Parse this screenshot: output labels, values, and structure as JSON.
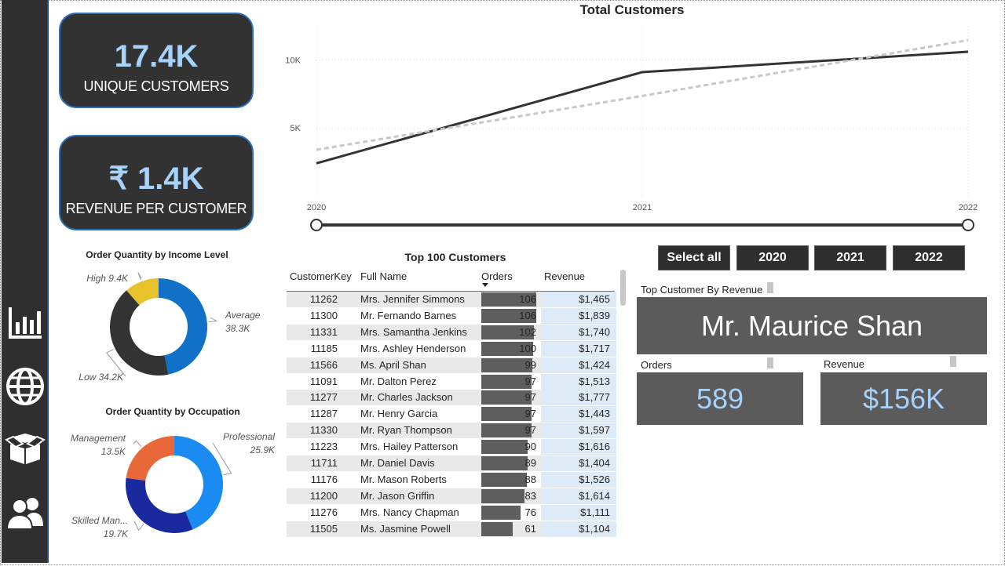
{
  "kpis": {
    "unique_customers": {
      "value": "17.4K",
      "label": "UNIQUE CUSTOMERS"
    },
    "revenue_per_customer": {
      "value": "₹ 1.4K",
      "label": "REVENUE PER CUSTOMER"
    }
  },
  "nav": [
    {
      "name": "chart-icon"
    },
    {
      "name": "globe-icon"
    },
    {
      "name": "box-icon"
    },
    {
      "name": "users-icon"
    }
  ],
  "income_chart": {
    "title": "Order Quantity by Income Level",
    "slices": [
      {
        "label": "Average",
        "value_label": "38.3K",
        "value": 38.3,
        "color": "#1170c8"
      },
      {
        "label": "Low",
        "value_label": "34.2K",
        "value": 34.2,
        "color": "#333333"
      },
      {
        "label": "High",
        "value_label": "9.4K",
        "value": 9.4,
        "color": "#e6c22b"
      }
    ]
  },
  "occupation_chart": {
    "title": "Order Quantity by Occupation",
    "slices": [
      {
        "label": "Professional",
        "value_label": "25.9K",
        "value": 25.9,
        "color": "#1a8bf0"
      },
      {
        "label": "Skilled Man...",
        "value_label": "19.7K",
        "value": 19.7,
        "color": "#1a2a9e"
      },
      {
        "label": "Management",
        "value_label": "13.5K",
        "value": 13.5,
        "color": "#e8683a"
      }
    ]
  },
  "chart_data": {
    "type": "line",
    "title": "Total Customers",
    "x": [
      "2020",
      "2021",
      "2022"
    ],
    "y_ticks": [
      "5K",
      "10K"
    ],
    "ylim": [
      0,
      12500
    ],
    "series": [
      {
        "values": [
          2400,
          9100,
          10600
        ],
        "color": "#333333",
        "style": "solid"
      },
      {
        "values": [
          3400,
          7350,
          11450
        ],
        "color": "#c8c8c8",
        "style": "dotted"
      }
    ],
    "grid": true
  },
  "slider": {
    "start": "2020",
    "end": "2022"
  },
  "table": {
    "title": "Top 100 Customers",
    "headers": {
      "key": "CustomerKey",
      "name": "Full Name",
      "orders": "Orders",
      "revenue": "Revenue"
    },
    "max_orders": 106,
    "rows": [
      {
        "key": "11262",
        "name": "Mrs. Jennifer Simmons",
        "orders": 106,
        "revenue": "$1,465"
      },
      {
        "key": "11300",
        "name": "Mr. Fernando Barnes",
        "orders": 106,
        "revenue": "$1,839"
      },
      {
        "key": "11331",
        "name": "Mrs. Samantha Jenkins",
        "orders": 102,
        "revenue": "$1,740"
      },
      {
        "key": "11185",
        "name": "Mrs. Ashley Henderson",
        "orders": 100,
        "revenue": "$1,717"
      },
      {
        "key": "11566",
        "name": "Ms. April Shan",
        "orders": 99,
        "revenue": "$1,424"
      },
      {
        "key": "11091",
        "name": "Mr. Dalton Perez",
        "orders": 97,
        "revenue": "$1,513"
      },
      {
        "key": "11277",
        "name": "Mr. Charles Jackson",
        "orders": 97,
        "revenue": "$1,777"
      },
      {
        "key": "11287",
        "name": "Mr. Henry Garcia",
        "orders": 97,
        "revenue": "$1,443"
      },
      {
        "key": "11330",
        "name": "Mr. Ryan Thompson",
        "orders": 97,
        "revenue": "$1,597"
      },
      {
        "key": "11223",
        "name": "Mrs. Hailey Patterson",
        "orders": 90,
        "revenue": "$1,616"
      },
      {
        "key": "11711",
        "name": "Mr. Daniel Davis",
        "orders": 89,
        "revenue": "$1,404"
      },
      {
        "key": "11176",
        "name": "Mr. Mason Roberts",
        "orders": 88,
        "revenue": "$1,526"
      },
      {
        "key": "11200",
        "name": "Mr. Jason Griffin",
        "orders": 83,
        "revenue": "$1,614"
      },
      {
        "key": "11276",
        "name": "Mrs. Nancy Chapman",
        "orders": 76,
        "revenue": "$1,111"
      },
      {
        "key": "11505",
        "name": "Ms. Jasmine Powell",
        "orders": 61,
        "revenue": "$1,104"
      }
    ]
  },
  "filters": [
    "Select all",
    "2020",
    "2021",
    "2022"
  ],
  "top_customer": {
    "label": "Top Customer By Revenue",
    "name": "Mr. Maurice Shan",
    "orders_label": "Orders",
    "orders_value": "589",
    "revenue_label": "Revenue",
    "revenue_value": "$156K",
    "value_color": "#a7d2fb"
  }
}
